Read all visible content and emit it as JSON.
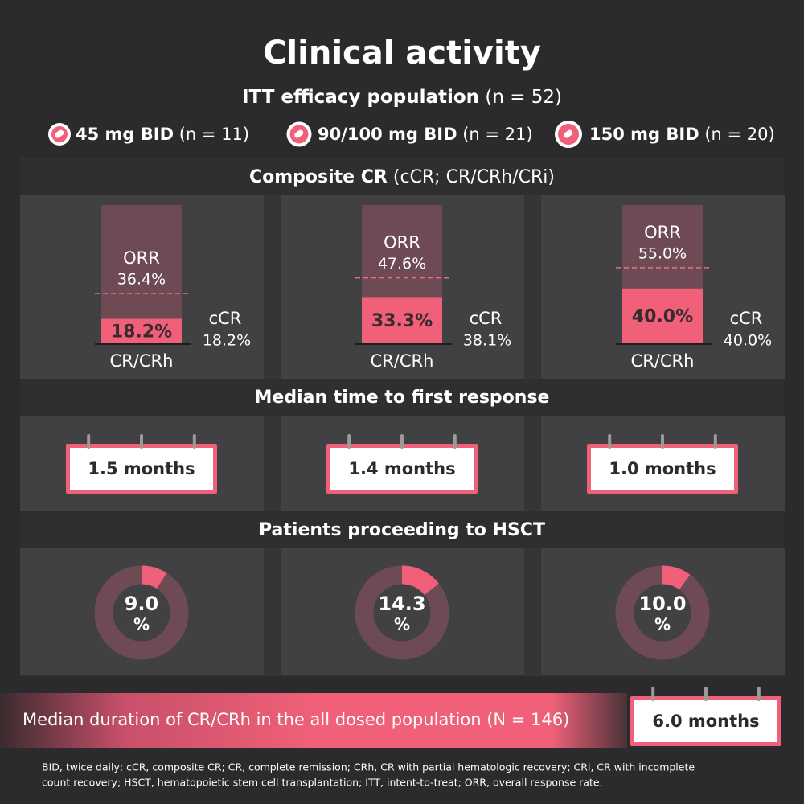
{
  "title": "Clinical activity",
  "subtitle": {
    "bold": "ITT efficacy population",
    "n": "(n = 52)"
  },
  "labels": {
    "orr": "ORR",
    "cr_crh": "CR/CRh",
    "ccr": "cCR"
  },
  "sections": [
    {
      "title": "Composite CR",
      "sub": "(cCR; CR/CRh/CRi)"
    },
    {
      "title": "Median time to first response"
    },
    {
      "title": "Patients proceeding to HSCT"
    }
  ],
  "doses": [
    {
      "name": "45 mg BID",
      "n": "(n = 11)",
      "orr": {
        "value": 36.4,
        "label": "36.4%"
      },
      "cr_crh": {
        "value": 18.2,
        "label": "18.2%"
      },
      "ccr": {
        "value": 18.2,
        "label": "18.2%"
      },
      "time_to_response": "1.5 months",
      "hsct": {
        "value": 9.0,
        "label": "9.0",
        "unit": "%"
      }
    },
    {
      "name": "90/100 mg BID",
      "n": "(n = 21)",
      "orr": {
        "value": 47.6,
        "label": "47.6%"
      },
      "cr_crh": {
        "value": 33.3,
        "label": "33.3%"
      },
      "ccr": {
        "value": 38.1,
        "label": "38.1%"
      },
      "time_to_response": "1.4 months",
      "hsct": {
        "value": 14.3,
        "label": "14.3",
        "unit": "%"
      }
    },
    {
      "name": "150 mg BID",
      "n": "(n = 20)",
      "orr": {
        "value": 55.0,
        "label": "55.0%"
      },
      "cr_crh": {
        "value": 40.0,
        "label": "40.0%"
      },
      "ccr": {
        "value": 40.0,
        "label": "40.0%"
      },
      "time_to_response": "1.0 months",
      "hsct": {
        "value": 10.0,
        "label": "10.0",
        "unit": "%"
      }
    }
  ],
  "duration": {
    "text": "Median duration of CR/CRh in the all dosed population (N = 146)",
    "value": "6.0 months"
  },
  "footnote": [
    "BID, twice daily; cCR, composite CR; CR, complete remission; CRh, CR with partial hematologic recovery; CRi, CR with incomplete",
    "count recovery; HSCT, hematopoietic stem cell transplantation; ITT, intent-to-treat; ORR, overall response rate."
  ]
}
